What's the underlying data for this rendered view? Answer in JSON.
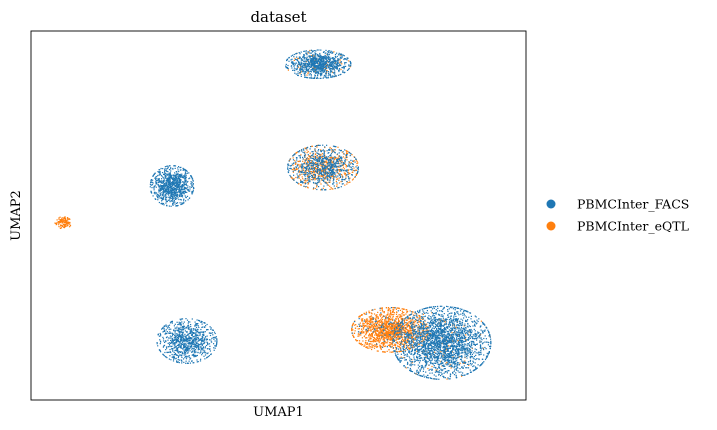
{
  "chart_data": {
    "type": "scatter",
    "title": "dataset",
    "xlabel": "UMAP1",
    "ylabel": "UMAP2",
    "xlim": [
      0,
      100
    ],
    "ylim": [
      0,
      100
    ],
    "grid": false,
    "ticks": false,
    "legend_position": "right",
    "series": [
      {
        "name": "PBMCInter_FACS",
        "color": "#1f77b4"
      },
      {
        "name": "PBMCInter_eQTL",
        "color": "#ff7f0e"
      }
    ],
    "clusters": [
      {
        "center": [
          58,
          91
        ],
        "spread": [
          6,
          3.5
        ],
        "count": 1000,
        "mix": 0.08
      },
      {
        "center": [
          59,
          63
        ],
        "spread": [
          6.5,
          5.5
        ],
        "count": 1300,
        "mix": 0.45
      },
      {
        "center": [
          28.5,
          58
        ],
        "spread": [
          4,
          5
        ],
        "count": 900,
        "mix": 0.0
      },
      {
        "center": [
          6.5,
          48
        ],
        "spread": [
          1.5,
          1.5
        ],
        "count": 130,
        "mix": 1.0
      },
      {
        "center": [
          31.5,
          16
        ],
        "spread": [
          5.5,
          5.5
        ],
        "count": 900,
        "mix": 0.0
      },
      {
        "center": [
          72.5,
          19
        ],
        "spread": [
          7,
          5.5
        ],
        "count": 1500,
        "mix": 0.92
      },
      {
        "center": [
          83,
          15.5
        ],
        "spread": [
          9,
          9
        ],
        "count": 2500,
        "mix": 0.05
      }
    ]
  }
}
